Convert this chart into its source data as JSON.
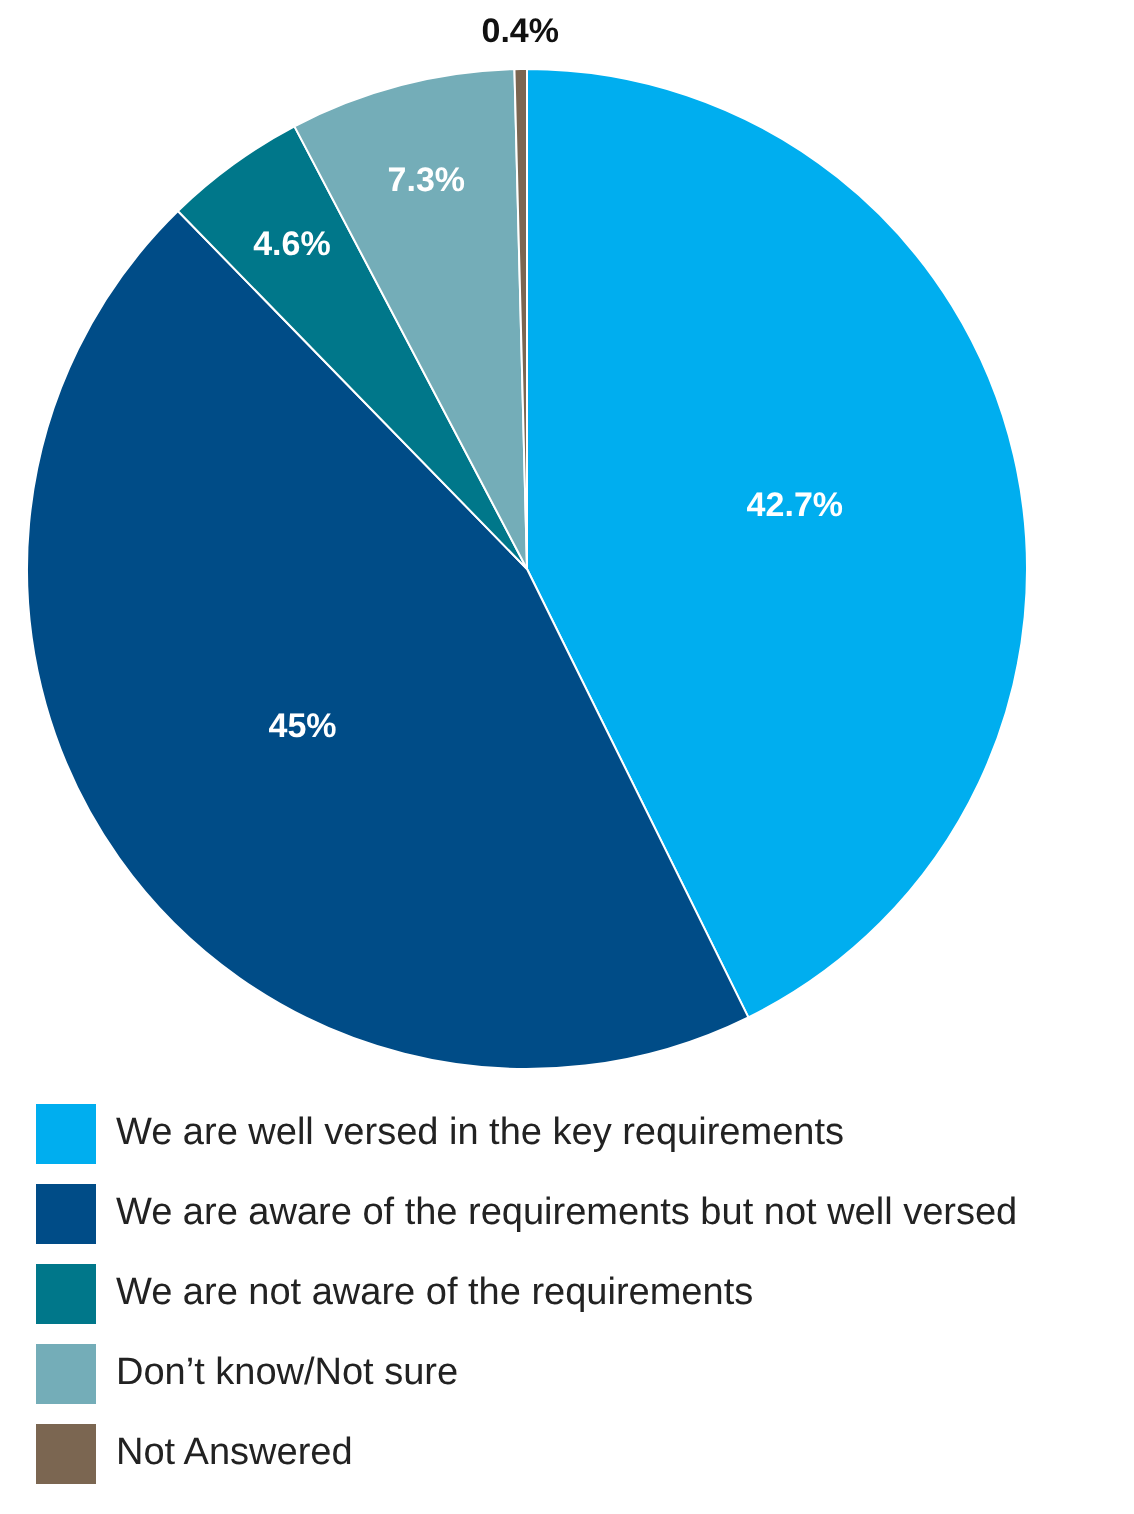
{
  "chart_data": {
    "type": "pie",
    "categories": [
      "We are well versed in the key requirements",
      "We are aware of the requirements but not well versed",
      "We are not aware of the requirements",
      "Don’t know/Not sure",
      "Not Answered"
    ],
    "values": [
      42.7,
      45,
      4.6,
      7.3,
      0.4
    ],
    "colors": [
      "#00aeef",
      "#004c87",
      "#00778a",
      "#74adb8",
      "#7b6651"
    ],
    "value_labels": [
      "42.7%",
      "45%",
      "4.6%",
      "7.3%",
      "0.4%"
    ],
    "legend": "bottom"
  }
}
